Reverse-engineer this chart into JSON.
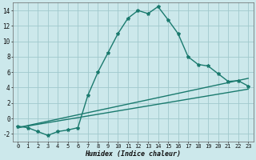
{
  "title": "",
  "xlabel": "Humidex (Indice chaleur)",
  "ylabel": "",
  "bg_color": "#cce8eb",
  "grid_color": "#a0c8cc",
  "line_color": "#1a7a6e",
  "curve1_x": [
    0,
    1,
    2,
    3,
    4,
    5,
    6,
    7,
    8,
    9,
    10,
    11,
    12,
    13,
    14,
    15,
    16,
    17,
    18,
    19,
    20,
    21,
    22,
    23
  ],
  "curve1_y": [
    -1.0,
    -1.2,
    -1.7,
    -2.2,
    -1.7,
    -1.5,
    -1.2,
    3.0,
    6.0,
    8.5,
    11.0,
    13.0,
    14.0,
    13.6,
    14.5,
    12.8,
    11.0,
    8.0,
    7.0,
    6.8,
    5.8,
    4.8,
    4.9,
    4.2
  ],
  "line1_x": [
    0,
    23
  ],
  "line1_y": [
    -1.2,
    5.2
  ],
  "line2_x": [
    0,
    23
  ],
  "line2_y": [
    -1.2,
    3.8
  ],
  "xlim": [
    -0.5,
    23.5
  ],
  "ylim": [
    -3,
    15
  ],
  "yticks": [
    -2,
    0,
    2,
    4,
    6,
    8,
    10,
    12,
    14
  ],
  "xticks": [
    0,
    1,
    2,
    3,
    4,
    5,
    6,
    7,
    8,
    9,
    10,
    11,
    12,
    13,
    14,
    15,
    16,
    17,
    18,
    19,
    20,
    21,
    22,
    23
  ],
  "marker": "*",
  "marker_size": 3,
  "linewidth": 1.0,
  "tick_fontsize": 5.0,
  "xlabel_fontsize": 6.0
}
